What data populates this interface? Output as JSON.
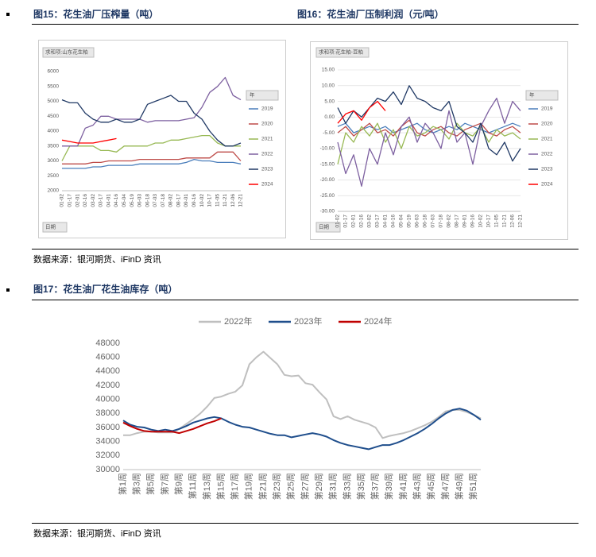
{
  "document": {
    "fig15_caption": "图15：花生油厂压榨量（吨）",
    "fig16_caption": "图16：花生油厂压制利润（元/吨）",
    "source_1": "数据来源：银河期货、iFinD 资讯",
    "fig17_caption": "图17：花生油厂花生油库存（吨）",
    "source_2": "数据来源：银河期货、iFinD 资讯"
  },
  "chart_data": [
    {
      "type": "line",
      "field_label": "求和项:山东花生粕",
      "legend_title": "年",
      "axis_filter": "日期",
      "legend": "right",
      "grid": false,
      "categories": [
        "01-02",
        "01-17",
        "02-01",
        "02-16",
        "03-02",
        "03-17",
        "04-01",
        "04-16",
        "05-04",
        "05-19",
        "06-03",
        "06-18",
        "07-03",
        "07-18",
        "08-02",
        "08-17",
        "09-01",
        "09-16",
        "10-02",
        "10-17",
        "11-05",
        "11-21",
        "12-06",
        "12-21"
      ],
      "ylim": [
        2000,
        6000
      ],
      "yticks": [
        2000,
        2500,
        3000,
        3500,
        4000,
        4500,
        5000,
        5500,
        6000
      ],
      "series": [
        {
          "name": "2019",
          "color": "#4a7ebb",
          "values": [
            2750,
            2750,
            2750,
            2750,
            2800,
            2800,
            2850,
            2850,
            2850,
            2850,
            2900,
            2900,
            2900,
            2900,
            2900,
            2900,
            2950,
            3050,
            3000,
            3000,
            2950,
            2950,
            2950,
            2900
          ]
        },
        {
          "name": "2020",
          "color": "#be4b48",
          "values": [
            2900,
            2900,
            2900,
            2900,
            2950,
            2950,
            3000,
            3000,
            3000,
            3000,
            3050,
            3050,
            3050,
            3050,
            3050,
            3050,
            3100,
            3100,
            3100,
            3100,
            3300,
            3300,
            3300,
            3000
          ]
        },
        {
          "name": "2021",
          "color": "#98b954",
          "values": [
            3000,
            3500,
            3500,
            3500,
            3500,
            3350,
            3350,
            3300,
            3500,
            3500,
            3500,
            3500,
            3600,
            3600,
            3700,
            3700,
            3750,
            3800,
            3850,
            3850,
            3600,
            3500,
            3500,
            3500
          ]
        },
        {
          "name": "2022",
          "color": "#7d60a0",
          "values": [
            3500,
            3500,
            3500,
            4100,
            4200,
            4500,
            4500,
            4400,
            4400,
            4400,
            4400,
            4300,
            4350,
            4350,
            4350,
            4350,
            4400,
            4450,
            4800,
            5300,
            5500,
            5800,
            5200,
            5050
          ]
        },
        {
          "name": "2023",
          "color": "#1f3864",
          "values": [
            5050,
            4950,
            4950,
            4600,
            4400,
            4300,
            4300,
            4400,
            4300,
            4300,
            4400,
            4900,
            5000,
            5100,
            5200,
            5000,
            5000,
            4600,
            4400,
            4000,
            3700,
            3500,
            3500,
            3600
          ]
        },
        {
          "name": "2024",
          "color": "#ff0000",
          "values": [
            3700,
            3650,
            3600,
            3600,
            3600,
            3650,
            3700,
            3750,
            null,
            null,
            null,
            null,
            null,
            null,
            null,
            null,
            null,
            null,
            null,
            null,
            null,
            null,
            null,
            null
          ]
        }
      ]
    },
    {
      "type": "line",
      "field_label": "求和项:花生粕-豆粕",
      "legend_title": "年",
      "axis_filter": "日期",
      "legend": "right",
      "grid": true,
      "categories": [
        "01-02",
        "01-17",
        "02-01",
        "02-16",
        "03-02",
        "03-17",
        "04-01",
        "04-16",
        "05-04",
        "05-19",
        "06-03",
        "06-18",
        "07-03",
        "07-18",
        "08-02",
        "08-17",
        "09-01",
        "09-16",
        "10-02",
        "10-17",
        "11-05",
        "11-21",
        "12-06",
        "12-21"
      ],
      "ylim": [
        -30,
        15
      ],
      "yticks": [
        {
          "value": -30,
          "label": "-30.00"
        },
        {
          "value": -25,
          "label": "-25.00"
        },
        {
          "value": -20,
          "label": "-20.00"
        },
        {
          "value": -15,
          "label": "-15.00"
        },
        {
          "value": -10,
          "label": "-10.00"
        },
        {
          "value": -5,
          "label": "-5.00"
        },
        {
          "value": 0,
          "label": "0.00"
        },
        {
          "value": 5,
          "label": "5.00"
        },
        {
          "value": 10,
          "label": "10.00"
        },
        {
          "value": 15,
          "label": "15.00"
        }
      ],
      "series": [
        {
          "name": "2019",
          "color": "#4a7ebb",
          "values": [
            -3,
            -2,
            -5,
            -4,
            -3,
            -4,
            -3,
            -5,
            -4,
            -3,
            -2,
            -4,
            -5,
            -4,
            -3,
            -4,
            -2,
            -3,
            -4,
            -5,
            -4,
            -3,
            -2,
            -3
          ]
        },
        {
          "name": "2020",
          "color": "#be4b48",
          "values": [
            -5,
            -3,
            -6,
            -4,
            -2,
            -5,
            -4,
            -6,
            -3,
            -1,
            -5,
            -6,
            -4,
            -3,
            -5,
            -6,
            -4,
            -3,
            -2,
            -5,
            -6,
            -4,
            -3,
            -5
          ]
        },
        {
          "name": "2021",
          "color": "#98b954",
          "values": [
            -15,
            -5,
            -8,
            -3,
            -6,
            -2,
            -8,
            -4,
            -10,
            -3,
            -6,
            -5,
            -3,
            -4,
            -7,
            -2,
            -5,
            -6,
            -3,
            -8,
            -4,
            -6,
            -5,
            -7
          ]
        },
        {
          "name": "2022",
          "color": "#7d60a0",
          "values": [
            -8,
            -18,
            -12,
            -22,
            -10,
            -15,
            -5,
            -12,
            -3,
            0,
            -8,
            -2,
            -5,
            -10,
            2,
            -8,
            -5,
            -15,
            -3,
            2,
            6,
            -2,
            5,
            2
          ]
        },
        {
          "name": "2023",
          "color": "#1f3864",
          "values": [
            3,
            -2,
            2,
            0,
            3,
            6,
            5,
            8,
            4,
            10,
            6,
            5,
            3,
            2,
            5,
            -3,
            -5,
            -8,
            -2,
            -10,
            -12,
            -8,
            -14,
            -10
          ]
        },
        {
          "name": "2024",
          "color": "#ff0000",
          "values": [
            -2,
            1,
            2,
            -1,
            3,
            5,
            2,
            null,
            null,
            null,
            null,
            null,
            null,
            null,
            null,
            null,
            null,
            null,
            null,
            null,
            null,
            null,
            null,
            null
          ]
        }
      ]
    },
    {
      "type": "line",
      "legend": "top",
      "grid": false,
      "categories": [
        "第1周",
        null,
        "第3周",
        null,
        "第5周",
        null,
        "第7周",
        null,
        "第9周",
        null,
        "第11周",
        null,
        "第13周",
        null,
        "第15周",
        null,
        "第17周",
        null,
        "第19周",
        null,
        "第21周",
        null,
        "第23周",
        null,
        "第25周",
        null,
        "第27周",
        null,
        "第29周",
        null,
        "第31周",
        null,
        "第33周",
        null,
        "第35周",
        null,
        "第37周",
        null,
        "第39周",
        null,
        "第41周",
        null,
        "第43周",
        null,
        "第45周",
        null,
        "第47周",
        null,
        "第49周",
        null,
        "第51周",
        null
      ],
      "ylim": [
        30000,
        48000
      ],
      "yticks": [
        30000,
        32000,
        34000,
        36000,
        38000,
        40000,
        42000,
        44000,
        46000,
        48000
      ],
      "series": [
        {
          "name": "2022年",
          "color": "#bfbfbf",
          "values": [
            34900,
            34900,
            35200,
            35400,
            35400,
            35300,
            35300,
            35300,
            35800,
            36500,
            37200,
            38000,
            39000,
            40200,
            40400,
            40800,
            41100,
            42000,
            45000,
            46000,
            46800,
            45900,
            45000,
            43500,
            43300,
            43400,
            42300,
            42100,
            41000,
            40000,
            37600,
            37200,
            37600,
            37100,
            36800,
            36500,
            36000,
            34500,
            34800,
            35000,
            35200,
            35500,
            35900,
            36300,
            36800,
            37500,
            38300,
            38500,
            38500,
            38200,
            37800,
            37300
          ]
        },
        {
          "name": "2023年",
          "color": "#1f4e8c",
          "values": [
            37000,
            36400,
            36100,
            36000,
            35700,
            35500,
            35700,
            35500,
            35800,
            36200,
            36700,
            37000,
            37300,
            37500,
            37300,
            36800,
            36400,
            36100,
            36000,
            35700,
            35400,
            35100,
            34900,
            34900,
            34600,
            34800,
            35000,
            35200,
            35000,
            34700,
            34200,
            33800,
            33500,
            33300,
            33100,
            32900,
            33200,
            33500,
            33500,
            33800,
            34200,
            34700,
            35200,
            35800,
            36500,
            37300,
            38000,
            38500,
            38700,
            38400,
            37800,
            37100
          ]
        },
        {
          "name": "2024年",
          "color": "#c00000",
          "values": [
            36700,
            36200,
            35800,
            35500,
            35400,
            35400,
            35400,
            35400,
            35200,
            35500,
            35800,
            36200,
            36600,
            36900,
            37300,
            null,
            null,
            null,
            null,
            null,
            null,
            null,
            null,
            null,
            null,
            null,
            null,
            null,
            null,
            null,
            null,
            null,
            null,
            null,
            null,
            null,
            null,
            null,
            null,
            null,
            null,
            null,
            null,
            null,
            null,
            null,
            null,
            null,
            null,
            null,
            null,
            null
          ]
        }
      ]
    }
  ]
}
